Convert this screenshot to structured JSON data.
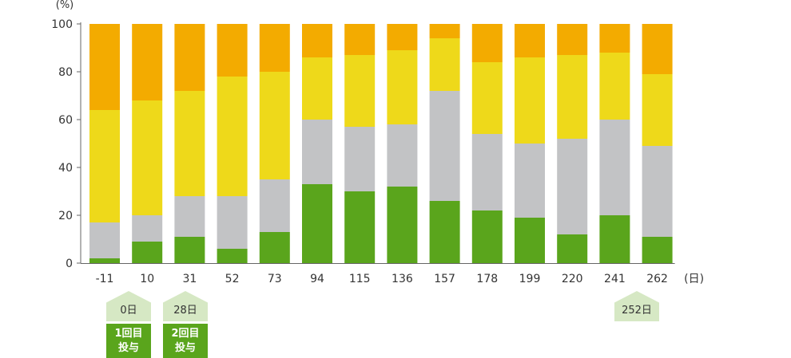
{
  "chart_data": {
    "type": "bar",
    "stacked": true,
    "ylabel": "(%)",
    "xlabel": "(日)",
    "ylim": [
      0,
      100
    ],
    "yticks": [
      0,
      20,
      40,
      60,
      80,
      100
    ],
    "grid": false,
    "categories": [
      "-11",
      "10",
      "31",
      "52",
      "73",
      "94",
      "115",
      "136",
      "157",
      "178",
      "199",
      "220",
      "241",
      "262"
    ],
    "series": [
      {
        "color": "#5aa51c",
        "values": [
          2,
          9,
          11,
          6,
          13,
          33,
          30,
          32,
          26,
          22,
          19,
          12,
          20,
          11
        ]
      },
      {
        "color": "#c2c3c5",
        "values": [
          15,
          11,
          17,
          22,
          22,
          27,
          27,
          26,
          46,
          32,
          31,
          40,
          40,
          38
        ]
      },
      {
        "color": "#eed91a",
        "values": [
          47,
          48,
          44,
          50,
          45,
          26,
          30,
          31,
          22,
          30,
          36,
          35,
          28,
          30
        ]
      },
      {
        "color": "#f3ab00",
        "values": [
          36,
          32,
          28,
          22,
          20,
          14,
          13,
          11,
          6,
          16,
          14,
          13,
          12,
          21
        ]
      }
    ]
  },
  "annotations": [
    {
      "category": "-11",
      "day_label": "0日",
      "dose_line1": "1回目",
      "dose_line2": "投与"
    },
    {
      "category": "31",
      "day_label": "28日",
      "dose_line1": "2回目",
      "dose_line2": "投与"
    }
  ],
  "extra_marker": {
    "category": "262",
    "day_label": "252日"
  }
}
